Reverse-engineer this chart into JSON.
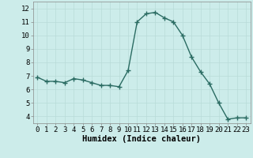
{
  "x": [
    0,
    1,
    2,
    3,
    4,
    5,
    6,
    7,
    8,
    9,
    10,
    11,
    12,
    13,
    14,
    15,
    16,
    17,
    18,
    19,
    20,
    21,
    22,
    23
  ],
  "y": [
    6.9,
    6.6,
    6.6,
    6.5,
    6.8,
    6.7,
    6.5,
    6.3,
    6.3,
    6.2,
    7.4,
    11.0,
    11.6,
    11.7,
    11.3,
    11.0,
    10.0,
    8.4,
    7.3,
    6.4,
    5.0,
    3.8,
    3.9,
    3.9
  ],
  "line_color": "#2a6b62",
  "marker": "+",
  "marker_size": 4,
  "marker_lw": 1.0,
  "bg_color": "#ccecea",
  "grid_color": "#b8dbd8",
  "xlabel": "Humidex (Indice chaleur)",
  "ylim": [
    3.5,
    12.5
  ],
  "xlim": [
    -0.5,
    23.5
  ],
  "yticks": [
    4,
    5,
    6,
    7,
    8,
    9,
    10,
    11,
    12
  ],
  "xticks": [
    0,
    1,
    2,
    3,
    4,
    5,
    6,
    7,
    8,
    9,
    10,
    11,
    12,
    13,
    14,
    15,
    16,
    17,
    18,
    19,
    20,
    21,
    22,
    23
  ],
  "xlabel_fontsize": 7.5,
  "tick_fontsize": 6.5,
  "line_width": 1.0
}
